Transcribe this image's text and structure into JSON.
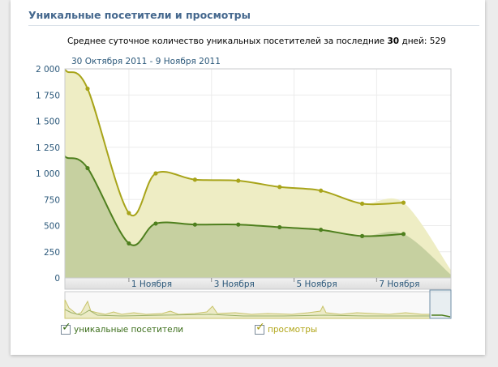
{
  "header": {
    "title": "Уникальные посетители и просмотры"
  },
  "summary": {
    "prefix": "Среднее суточное количество уникальных посетителей за последние",
    "days": "30",
    "suffix": "дней:",
    "value": "529"
  },
  "date_range": "30 Октября 2011 - 9 Ноября 2011",
  "chart_data": {
    "type": "area",
    "y_tick_labels": [
      "0",
      "250",
      "500",
      "750",
      "1 000",
      "1 250",
      "1 500",
      "1 750",
      "2 000"
    ],
    "ylim": [
      0,
      2000
    ],
    "x_tick_labels": [
      {
        "x": 2,
        "label": "1 Ноября"
      },
      {
        "x": 4,
        "label": "3 Ноября"
      },
      {
        "x": 6,
        "label": "5 Ноября"
      },
      {
        "x": 8,
        "label": "7 Ноября"
      }
    ],
    "xlim": [
      0.45,
      9.8
    ],
    "grid": true,
    "series": [
      {
        "name": "просмотры",
        "color": "#a8a41a",
        "fill": "#eeedc4",
        "x": [
          0.5,
          1,
          2,
          2.65,
          3.6,
          4.65,
          5.65,
          6.65,
          7.65,
          8.65
        ],
        "values": [
          1975,
          1810,
          620,
          1000,
          940,
          930,
          870,
          835,
          710,
          720
        ],
        "projection": {
          "x": [
            8.65,
            9.8
          ],
          "values": [
            720,
            75
          ]
        }
      },
      {
        "name": "уникальные посетители",
        "color": "#4e7f1e",
        "fill": "#c6d0a0",
        "x": [
          0.5,
          1,
          2,
          2.65,
          3.6,
          4.65,
          5.65,
          6.65,
          7.65,
          8.65
        ],
        "values": [
          1150,
          1050,
          330,
          520,
          510,
          510,
          485,
          460,
          400,
          420
        ],
        "projection": {
          "x": [
            8.65,
            9.8
          ],
          "values": [
            420,
            30
          ]
        }
      }
    ]
  },
  "legend": {
    "unique_label": "уникальные посетители",
    "views_label": "просмотры"
  }
}
